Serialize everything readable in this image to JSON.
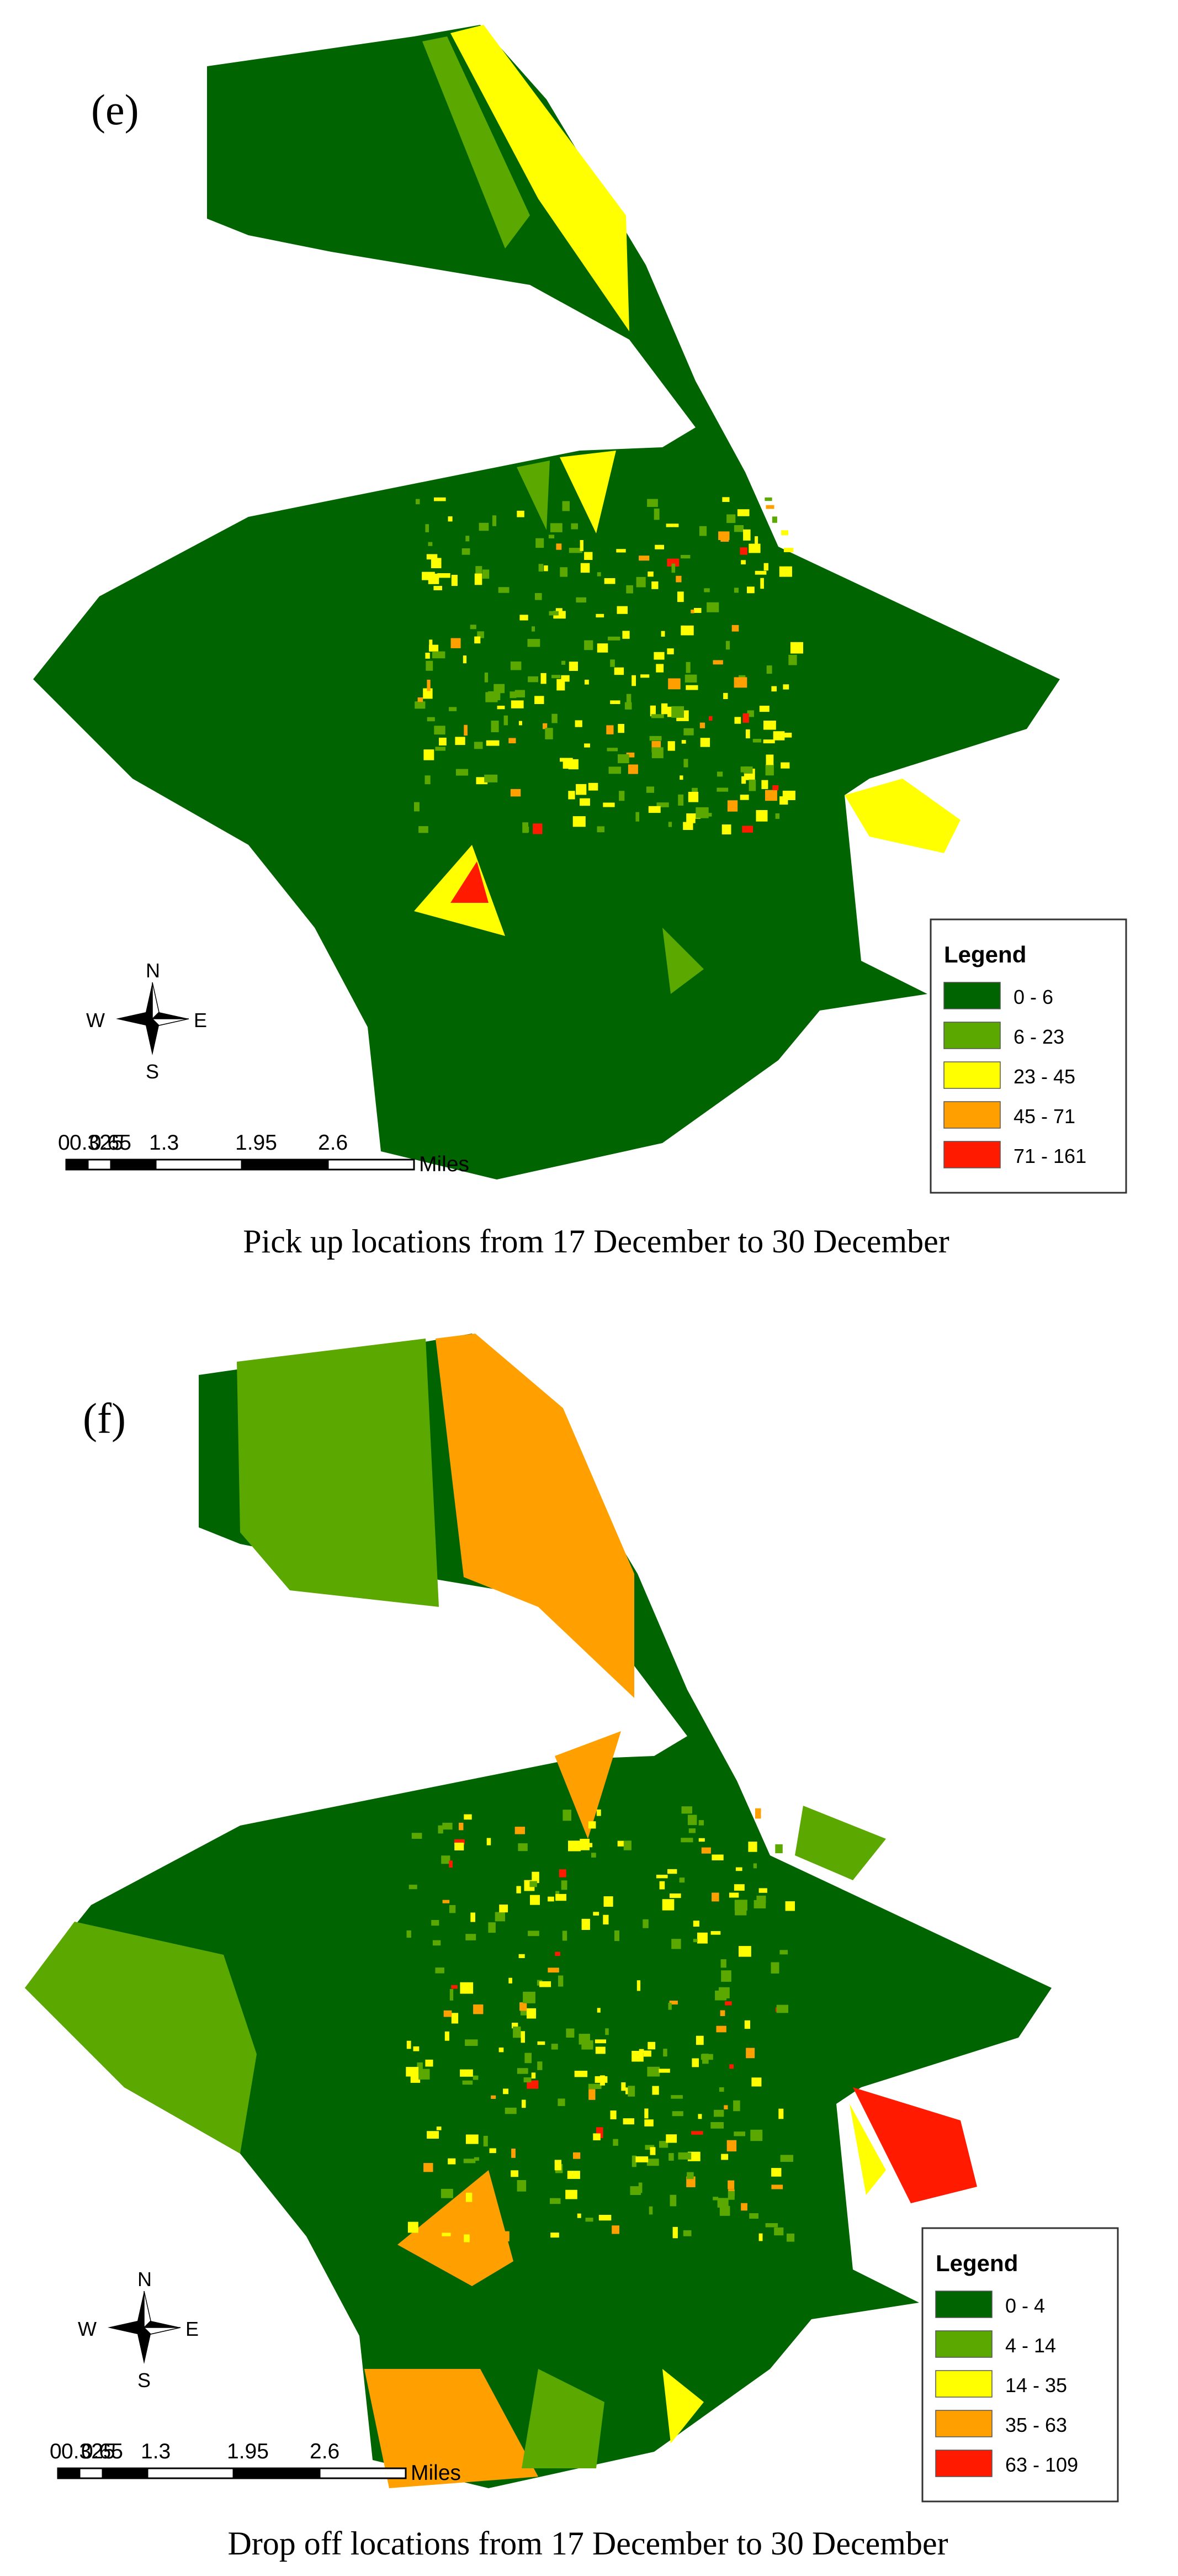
{
  "panels": [
    {
      "label": "(e)",
      "legend": {
        "title": "Legend",
        "entries": [
          {
            "label": "0 - 6",
            "color": "#006400"
          },
          {
            "label": "6 - 23",
            "color": "#5aa800"
          },
          {
            "label": "23 - 45",
            "color": "#ffff00"
          },
          {
            "label": "45 - 71",
            "color": "#ffa000"
          },
          {
            "label": "71 - 161",
            "color": "#ff1a00"
          }
        ]
      },
      "scale_bar": {
        "labels": [
          "0",
          "0.325",
          "0.65",
          "1.3",
          "1.95",
          "2.6"
        ],
        "unit": "Miles"
      },
      "compass": {
        "n": "N",
        "s": "S",
        "e": "E",
        "w": "W"
      },
      "caption": "Pick up locations from 17 December to 30 December"
    },
    {
      "label": "(f)",
      "legend": {
        "title": "Legend",
        "entries": [
          {
            "label": "0 - 4",
            "color": "#006400"
          },
          {
            "label": "4 - 14",
            "color": "#5aa800"
          },
          {
            "label": "14 - 35",
            "color": "#ffff00"
          },
          {
            "label": "35 - 63",
            "color": "#ffa000"
          },
          {
            "label": "63 - 109",
            "color": "#ff1a00"
          }
        ]
      },
      "scale_bar": {
        "labels": [
          "0",
          "0.325",
          "0.65",
          "1.3",
          "1.95",
          "2.6"
        ],
        "unit": "Miles"
      },
      "compass": {
        "n": "N",
        "s": "S",
        "e": "E",
        "w": "W"
      },
      "caption": "Drop off locations from 17 December to 30 December"
    }
  ]
}
